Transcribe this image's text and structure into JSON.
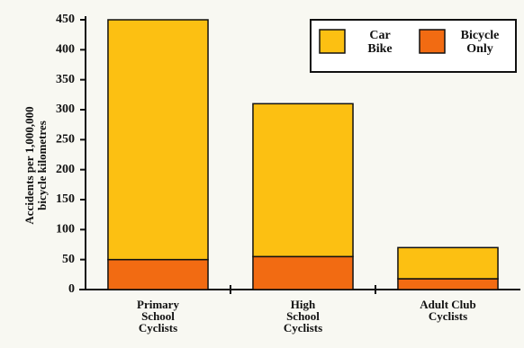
{
  "chart_data": {
    "type": "stacked-bar",
    "y_label": "Accidents per 1,000,000\nbicycle kilometres",
    "categories": [
      "Primary\nSchool\nCyclists",
      "High\nSchool\nCyclists",
      "Adult Club\nCyclists"
    ],
    "series": [
      {
        "name": "Bicycle\nOnly",
        "color": "#f26b12",
        "values": [
          50,
          55,
          18
        ]
      },
      {
        "name": "Car\nBike",
        "color": "#fcc012",
        "values": [
          400,
          255,
          52
        ]
      }
    ],
    "ylim": [
      0,
      450
    ],
    "yticks": [
      0,
      50,
      100,
      150,
      200,
      250,
      300,
      350,
      400,
      450
    ]
  }
}
